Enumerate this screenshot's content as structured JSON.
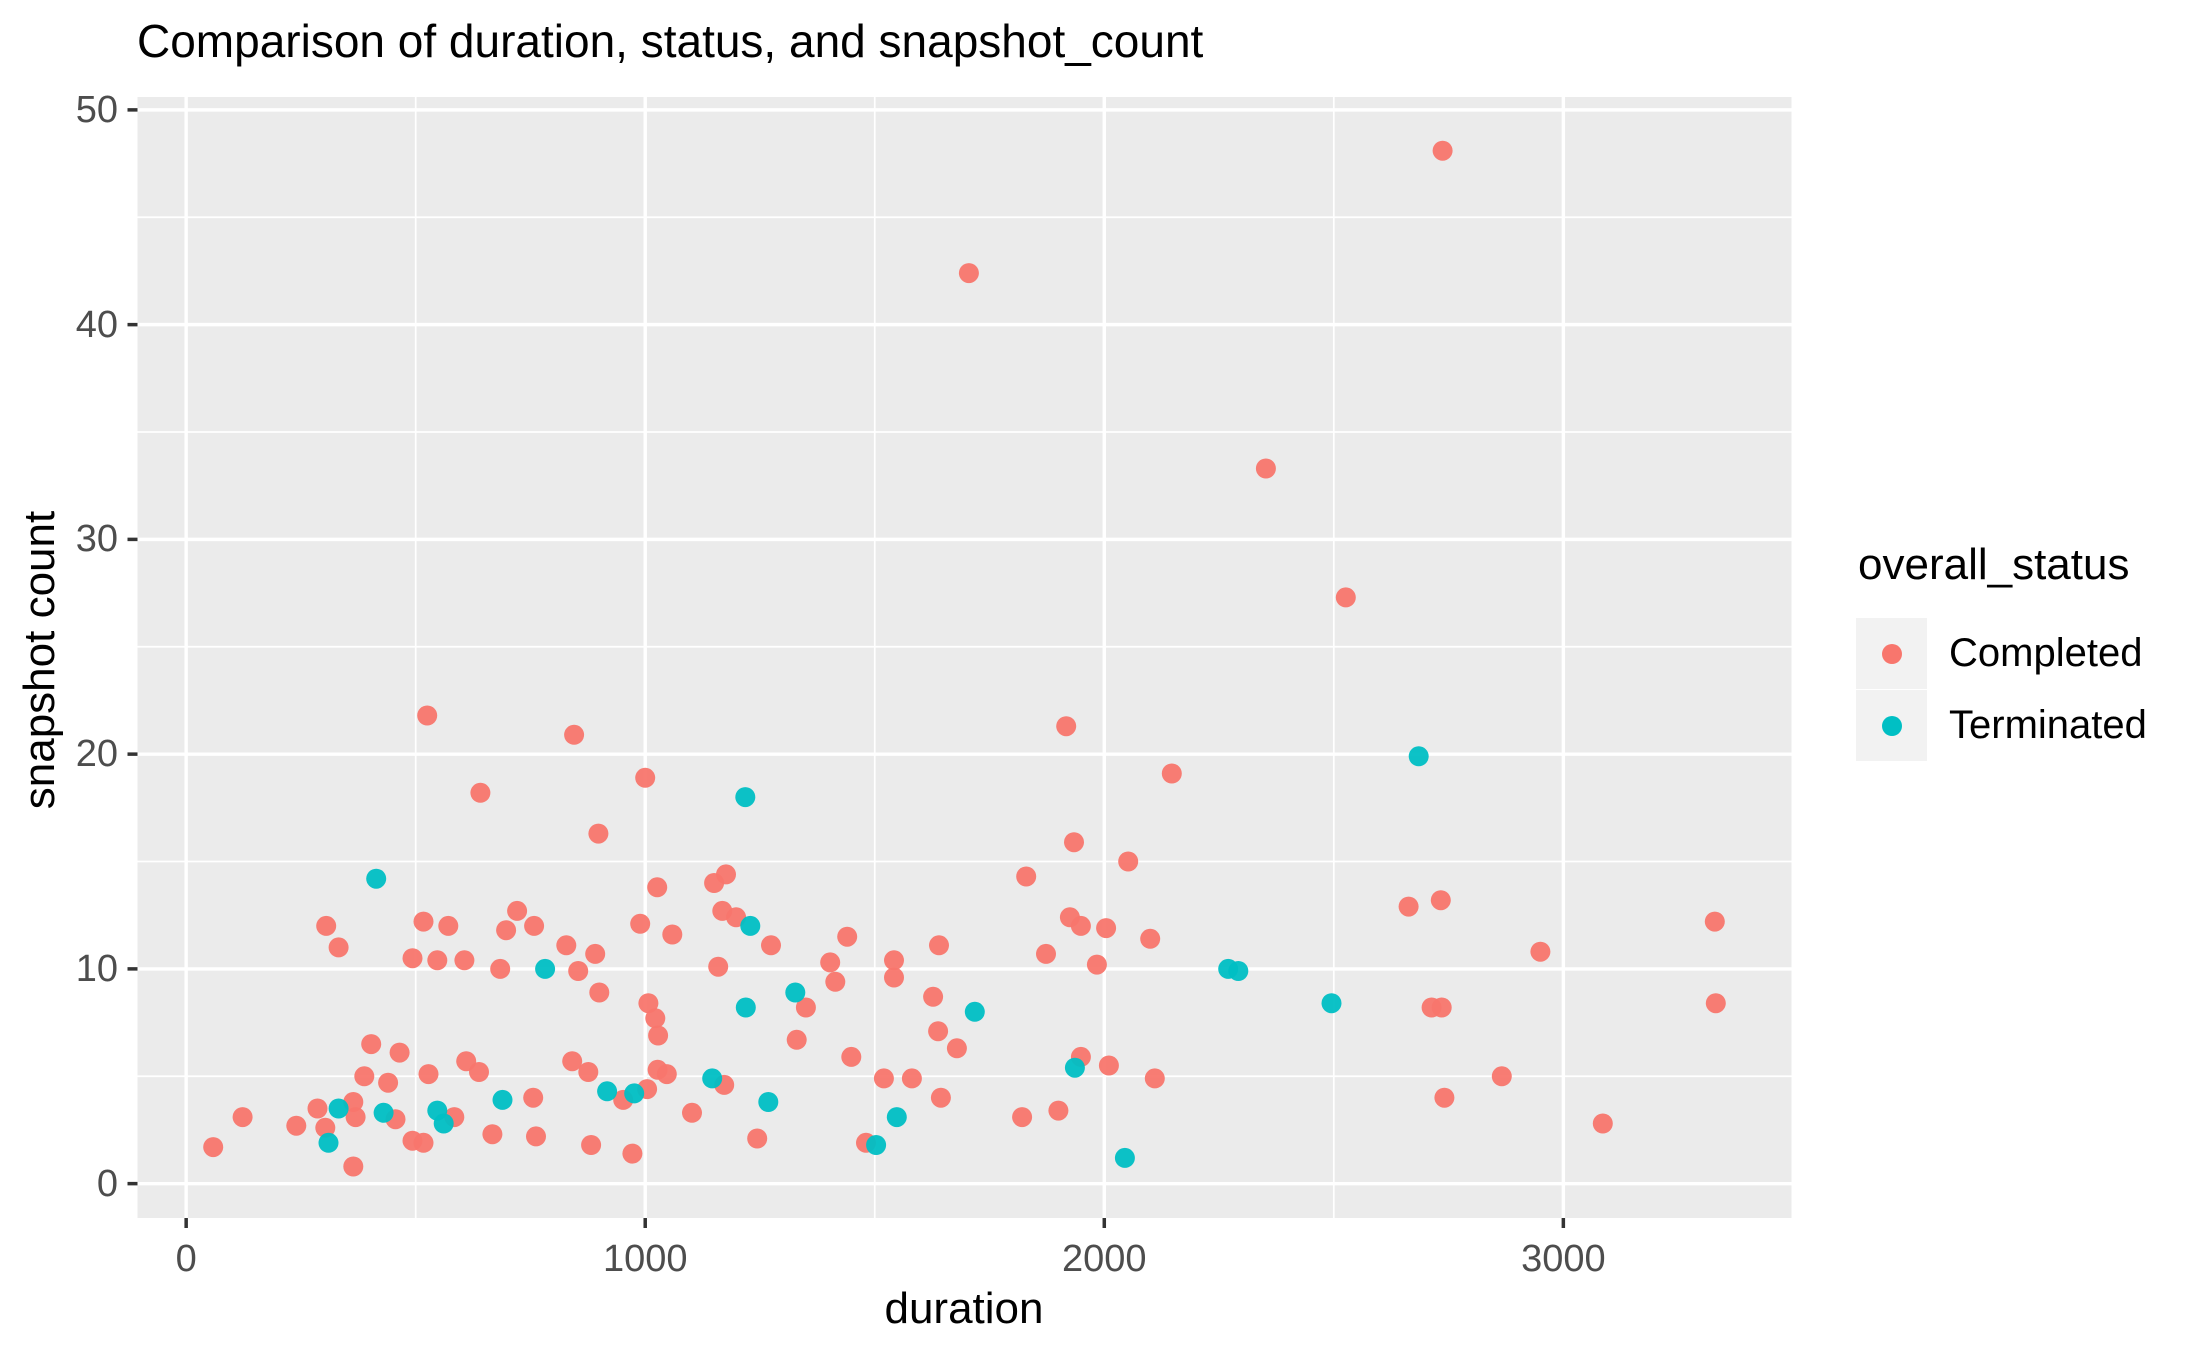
{
  "title": "Comparison of duration, status, and snapshot_count",
  "axes": {
    "x": {
      "label": "duration",
      "tick_labels": [
        "0",
        "1000",
        "2000",
        "3000"
      ]
    },
    "y": {
      "label": "snapshot count",
      "tick_labels": [
        "0",
        "10",
        "20",
        "30",
        "40",
        "50"
      ]
    }
  },
  "legend": {
    "title": "overall_status",
    "items": [
      {
        "label": "Completed",
        "color": "#F8766D"
      },
      {
        "label": "Terminated",
        "color": "#00BFC4"
      }
    ]
  },
  "style": {
    "panel_bg": "#EBEBEB",
    "grid_color": "#FFFFFF",
    "tick_color": "#333333",
    "tick_text_color": "#4D4D4D",
    "legend_key_bg": "#F2F2F2",
    "point_radius": 10
  },
  "chart_data": {
    "type": "scatter",
    "title": "Comparison of duration, status, and snapshot_count",
    "xlabel": "duration",
    "ylabel": "snapshot count",
    "legend_title": "overall_status",
    "legend_position": "right",
    "grid": true,
    "xlim": [
      -106,
      3497
    ],
    "ylim": [
      -1.6,
      50.6
    ],
    "x_major_ticks": [
      0,
      1000,
      2000,
      3000
    ],
    "x_minor_ticks": [
      500,
      1500,
      2500
    ],
    "y_major_ticks": [
      0,
      10,
      20,
      30,
      40,
      50
    ],
    "y_minor_ticks": [
      5,
      15,
      25,
      35,
      45
    ],
    "series": [
      {
        "name": "Completed",
        "color": "#F8766D",
        "points": [
          [
            2737,
            48.1
          ],
          [
            1705,
            42.4
          ],
          [
            2352,
            33.3
          ],
          [
            2526,
            27.3
          ],
          [
            525,
            21.8
          ],
          [
            1917,
            21.3
          ],
          [
            845,
            20.9
          ],
          [
            2147,
            19.1
          ],
          [
            1000,
            18.9
          ],
          [
            641,
            18.2
          ],
          [
            898,
            16.3
          ],
          [
            1934,
            15.9
          ],
          [
            2052,
            15.0
          ],
          [
            1176,
            14.4
          ],
          [
            1830,
            14.3
          ],
          [
            1150,
            14.0
          ],
          [
            1026,
            13.8
          ],
          [
            2733,
            13.2
          ],
          [
            2663,
            12.9
          ],
          [
            721,
            12.7
          ],
          [
            1168,
            12.7
          ],
          [
            1198,
            12.4
          ],
          [
            1925,
            12.4
          ],
          [
            517,
            12.2
          ],
          [
            3330,
            12.2
          ],
          [
            989,
            12.1
          ],
          [
            305,
            12.0
          ],
          [
            571,
            12.0
          ],
          [
            758,
            12.0
          ],
          [
            1949,
            12.0
          ],
          [
            2004,
            11.9
          ],
          [
            697,
            11.8
          ],
          [
            1059,
            11.6
          ],
          [
            1440,
            11.5
          ],
          [
            2100,
            11.4
          ],
          [
            828,
            11.1
          ],
          [
            1274,
            11.1
          ],
          [
            1640,
            11.1
          ],
          [
            332,
            11.0
          ],
          [
            2950,
            10.8
          ],
          [
            891,
            10.7
          ],
          [
            1873,
            10.7
          ],
          [
            493,
            10.5
          ],
          [
            547,
            10.4
          ],
          [
            606,
            10.4
          ],
          [
            1403,
            10.3
          ],
          [
            1542,
            10.4
          ],
          [
            1984,
            10.2
          ],
          [
            1159,
            10.1
          ],
          [
            684,
            10.0
          ],
          [
            854,
            9.9
          ],
          [
            1542,
            9.6
          ],
          [
            1414,
            9.4
          ],
          [
            900,
            8.9
          ],
          [
            1627,
            8.7
          ],
          [
            3332,
            8.4
          ],
          [
            1007,
            8.4
          ],
          [
            1350,
            8.2
          ],
          [
            2713,
            8.2
          ],
          [
            2735,
            8.2
          ],
          [
            1022,
            7.7
          ],
          [
            1638,
            7.1
          ],
          [
            1028,
            6.9
          ],
          [
            1330,
            6.7
          ],
          [
            403,
            6.5
          ],
          [
            1679,
            6.3
          ],
          [
            465,
            6.1
          ],
          [
            610,
            5.7
          ],
          [
            841,
            5.7
          ],
          [
            1949,
            5.9
          ],
          [
            1449,
            5.9
          ],
          [
            2010,
            5.5
          ],
          [
            1027,
            5.3
          ],
          [
            638,
            5.2
          ],
          [
            876,
            5.2
          ],
          [
            528,
            5.1
          ],
          [
            1047,
            5.1
          ],
          [
            388,
            5.0
          ],
          [
            2866,
            5.0
          ],
          [
            1520,
            4.9
          ],
          [
            1581,
            4.9
          ],
          [
            2110,
            4.9
          ],
          [
            440,
            4.7
          ],
          [
            1172,
            4.6
          ],
          [
            1004,
            4.4
          ],
          [
            756,
            4.0
          ],
          [
            1644,
            4.0
          ],
          [
            2741,
            4.0
          ],
          [
            952,
            3.9
          ],
          [
            364,
            3.8
          ],
          [
            286,
            3.5
          ],
          [
            1900,
            3.4
          ],
          [
            1102,
            3.3
          ],
          [
            123,
            3.1
          ],
          [
            369,
            3.1
          ],
          [
            584,
            3.1
          ],
          [
            1821,
            3.1
          ],
          [
            456,
            3.0
          ],
          [
            3086,
            2.8
          ],
          [
            240,
            2.7
          ],
          [
            303,
            2.6
          ],
          [
            667,
            2.3
          ],
          [
            762,
            2.2
          ],
          [
            1244,
            2.1
          ],
          [
            493,
            2.0
          ],
          [
            517,
            1.9
          ],
          [
            1481,
            1.9
          ],
          [
            882,
            1.8
          ],
          [
            59,
            1.7
          ],
          [
            972,
            1.4
          ],
          [
            364,
            0.8
          ]
        ]
      },
      {
        "name": "Terminated",
        "color": "#00BFC4",
        "points": [
          [
            2685,
            19.9
          ],
          [
            1218,
            18.0
          ],
          [
            414,
            14.2
          ],
          [
            1229,
            12.0
          ],
          [
            2270,
            10.0
          ],
          [
            2292,
            9.9
          ],
          [
            782,
            10.0
          ],
          [
            1327,
            8.9
          ],
          [
            2495,
            8.4
          ],
          [
            1219,
            8.2
          ],
          [
            1718,
            8.0
          ],
          [
            1936,
            5.4
          ],
          [
            1146,
            4.9
          ],
          [
            917,
            4.3
          ],
          [
            976,
            4.2
          ],
          [
            689,
            3.9
          ],
          [
            1268,
            3.8
          ],
          [
            332,
            3.5
          ],
          [
            547,
            3.4
          ],
          [
            430,
            3.3
          ],
          [
            1548,
            3.1
          ],
          [
            561,
            2.8
          ],
          [
            310,
            1.9
          ],
          [
            1503,
            1.8
          ],
          [
            2045,
            1.2
          ]
        ]
      }
    ]
  }
}
